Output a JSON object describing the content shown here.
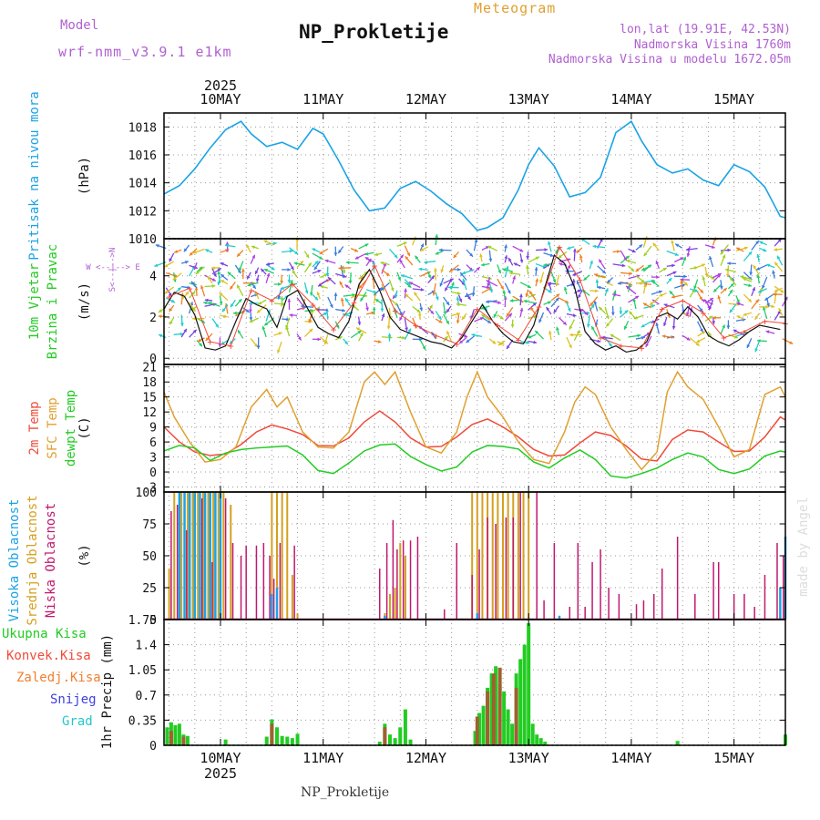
{
  "header": {
    "model_label": "Model",
    "model_name": "wrf-nmm_v3.9.1 e1km",
    "subtitle": "Meteogram",
    "title": "NP_Prokletije",
    "lonlat": "lon,lat (19.91E, 42.53N)",
    "elevation": "Nadmorska Visina 1760m",
    "model_elevation": "Nadmorska Visina u modelu 1672.05m",
    "footer_title": "NP_Prokletije",
    "watermark": "made by Angel"
  },
  "colors": {
    "pressure": "#1aa3e6",
    "temp2m": "#f04a3a",
    "sfc_temp": "#e0a030",
    "dewpoint": "#22cc22",
    "high_cloud": "#1aa3e6",
    "mid_cloud": "#d4a020",
    "low_cloud": "#c0186e",
    "total_precip": "#22cc22",
    "conv_precip": "#a06030",
    "snow": "#4040e0",
    "grad": "#22c8c8",
    "wind_label": "#22cc22",
    "wind_speed": "#111111",
    "gust": "#f04a3a",
    "purple": "#b060d0"
  },
  "time_axis": {
    "year": "2025",
    "day_labels": [
      "10MAY",
      "11MAY",
      "12MAY",
      "13MAY",
      "14MAY",
      "15MAY"
    ],
    "start_day_offset": -0.55,
    "end_day_offset": 5.5
  },
  "chart_data": [
    {
      "id": "pressure",
      "type": "line",
      "ylabel_side": "Pritisak na nivou mora",
      "unit": "(hPa)",
      "ylim": [
        1010,
        1019
      ],
      "yticks": [
        "1010",
        "1012",
        "1014",
        "1016",
        "1018"
      ],
      "series": [
        {
          "x": [
            -0.55,
            -0.4,
            -0.25,
            -0.1,
            0.05,
            0.2,
            0.3,
            0.45,
            0.6,
            0.75,
            0.9,
            1.0,
            1.15,
            1.3,
            1.45,
            1.6,
            1.75,
            1.9,
            2.05,
            2.2,
            2.35,
            2.5,
            2.6,
            2.75,
            2.9,
            3.0,
            3.1,
            3.25,
            3.4,
            3.55,
            3.7,
            3.85,
            4.0,
            4.1,
            4.25,
            4.4,
            4.55,
            4.7,
            4.85,
            5.0,
            5.15,
            5.3,
            5.45,
            5.5
          ],
          "y": [
            1013.2,
            1013.8,
            1015.0,
            1016.5,
            1017.8,
            1018.4,
            1017.5,
            1016.6,
            1016.9,
            1016.4,
            1017.9,
            1017.5,
            1015.6,
            1013.5,
            1012.0,
            1012.2,
            1013.6,
            1014.1,
            1013.4,
            1012.5,
            1011.8,
            1010.6,
            1010.8,
            1011.5,
            1013.5,
            1015.3,
            1016.5,
            1015.2,
            1013.0,
            1013.3,
            1014.4,
            1017.6,
            1018.4,
            1017.0,
            1015.3,
            1014.7,
            1015.0,
            1014.2,
            1013.8,
            1015.3,
            1014.8,
            1013.7,
            1011.6,
            1011.5
          ]
        }
      ]
    },
    {
      "id": "wind",
      "type": "line",
      "ylabel_side": [
        "10m Vjetar",
        "Brzina i Pravac"
      ],
      "unit": "(m/s)",
      "compass": "W <--|--> E",
      "compass_vert": "S<--|-->N",
      "ylim": [
        -0.3,
        5.8
      ],
      "yticks": [
        "0",
        "2",
        "4"
      ],
      "series": [
        {
          "name": "speed",
          "x": [
            -0.55,
            -0.45,
            -0.35,
            -0.25,
            -0.15,
            -0.05,
            0.05,
            0.15,
            0.25,
            0.35,
            0.45,
            0.55,
            0.65,
            0.75,
            0.85,
            0.95,
            1.05,
            1.15,
            1.25,
            1.35,
            1.45,
            1.55,
            1.65,
            1.75,
            1.85,
            1.95,
            2.05,
            2.15,
            2.25,
            2.35,
            2.45,
            2.55,
            2.65,
            2.75,
            2.85,
            2.95,
            3.05,
            3.15,
            3.25,
            3.35,
            3.45,
            3.55,
            3.65,
            3.75,
            3.85,
            3.95,
            4.05,
            4.15,
            4.25,
            4.35,
            4.45,
            4.55,
            4.65,
            4.75,
            4.85,
            4.95,
            5.05,
            5.15,
            5.25,
            5.35,
            5.45
          ],
          "y": [
            2.4,
            3.2,
            3.0,
            2.1,
            0.5,
            0.4,
            0.6,
            1.8,
            2.9,
            2.6,
            2.4,
            1.5,
            3.0,
            3.3,
            2.4,
            1.5,
            1.2,
            1.0,
            1.8,
            3.6,
            4.3,
            3.3,
            2.0,
            1.4,
            1.2,
            1.0,
            0.8,
            0.7,
            0.5,
            1.0,
            1.8,
            2.6,
            1.8,
            1.2,
            0.8,
            0.7,
            1.6,
            3.3,
            5.0,
            4.6,
            3.4,
            1.3,
            0.7,
            0.4,
            0.6,
            0.3,
            0.4,
            0.8,
            2.0,
            2.2,
            1.9,
            2.5,
            2.0,
            1.1,
            0.8,
            0.6,
            0.9,
            1.3,
            1.6,
            1.5,
            1.4
          ]
        },
        {
          "name": "gust",
          "x": [
            -0.5,
            -0.3,
            -0.1,
            0.1,
            0.3,
            0.5,
            0.7,
            0.9,
            1.1,
            1.3,
            1.5,
            1.7,
            1.9,
            2.1,
            2.3,
            2.5,
            2.7,
            2.9,
            3.1,
            3.3,
            3.5,
            3.7,
            3.9,
            4.1,
            4.3,
            4.5,
            4.7,
            4.9,
            5.1,
            5.3,
            5.5
          ],
          "y": [
            3.0,
            3.4,
            0.8,
            0.6,
            3.3,
            2.8,
            3.6,
            2.6,
            1.4,
            2.7,
            4.5,
            2.3,
            1.6,
            1.1,
            0.7,
            2.4,
            1.6,
            0.9,
            2.5,
            5.4,
            3.8,
            1.0,
            0.6,
            0.5,
            2.4,
            2.8,
            2.2,
            1.0,
            1.3,
            1.8,
            1.7
          ]
        }
      ]
    },
    {
      "id": "temperature",
      "type": "line",
      "ylabel_side": [
        "2m Temp",
        "SFC Temp",
        "dewpt Temp"
      ],
      "unit": "(C)",
      "ylim": [
        -4,
        21.5
      ],
      "yticks": [
        "-3",
        "0",
        "3",
        "6",
        "9",
        "12",
        "15",
        "18",
        "21"
      ],
      "series": [
        {
          "name": "2m Temp",
          "x": [
            -0.55,
            -0.4,
            -0.25,
            -0.1,
            0.05,
            0.2,
            0.35,
            0.5,
            0.65,
            0.8,
            0.95,
            1.1,
            1.25,
            1.4,
            1.55,
            1.7,
            1.85,
            2.0,
            2.15,
            2.3,
            2.45,
            2.6,
            2.75,
            2.9,
            3.05,
            3.2,
            3.35,
            3.5,
            3.65,
            3.8,
            3.95,
            4.1,
            4.25,
            4.4,
            4.55,
            4.7,
            4.85,
            5.0,
            5.15,
            5.3,
            5.45,
            5.5
          ],
          "y": [
            9,
            6,
            4,
            3.3,
            3.6,
            5.5,
            8,
            9.4,
            8.6,
            7.5,
            5.3,
            5.2,
            6.8,
            10,
            12.2,
            10,
            6.8,
            5.0,
            5.1,
            7,
            9.5,
            10.6,
            9,
            7,
            4.5,
            3.2,
            3.4,
            5.8,
            8,
            7.3,
            5.2,
            2.6,
            2.2,
            6.5,
            8.4,
            8,
            6,
            4.1,
            4.2,
            7,
            11,
            10.4
          ]
        },
        {
          "name": "SFC Temp",
          "x": [
            -0.55,
            -0.45,
            -0.3,
            -0.15,
            0.0,
            0.15,
            0.3,
            0.45,
            0.55,
            0.65,
            0.8,
            0.95,
            1.1,
            1.25,
            1.4,
            1.5,
            1.6,
            1.7,
            1.85,
            2.0,
            2.15,
            2.3,
            2.4,
            2.5,
            2.6,
            2.75,
            2.9,
            3.05,
            3.2,
            3.35,
            3.45,
            3.55,
            3.65,
            3.8,
            3.95,
            4.1,
            4.25,
            4.35,
            4.45,
            4.55,
            4.7,
            4.85,
            5.0,
            5.15,
            5.3,
            5.45,
            5.5
          ],
          "y": [
            16,
            11,
            6,
            2,
            2.5,
            5,
            13,
            16.5,
            13,
            15,
            8,
            5,
            4.8,
            8,
            18,
            20,
            17.5,
            20,
            12,
            5,
            3.8,
            8,
            15,
            20,
            15,
            11,
            6,
            2.5,
            1.7,
            8,
            14,
            17,
            15.5,
            9,
            4.5,
            0.5,
            4,
            16,
            20,
            17,
            14.5,
            9,
            3,
            4.5,
            15.5,
            17,
            15
          ]
        },
        {
          "name": "dewpt Temp",
          "x": [
            -0.55,
            -0.4,
            -0.25,
            -0.1,
            0.05,
            0.2,
            0.35,
            0.5,
            0.65,
            0.8,
            0.95,
            1.1,
            1.25,
            1.4,
            1.55,
            1.7,
            1.85,
            2.0,
            2.15,
            2.3,
            2.45,
            2.6,
            2.75,
            2.9,
            3.05,
            3.2,
            3.35,
            3.5,
            3.65,
            3.8,
            3.95,
            4.1,
            4.25,
            4.4,
            4.55,
            4.7,
            4.85,
            5.0,
            5.15,
            5.3,
            5.45,
            5.5
          ],
          "y": [
            4.2,
            5.3,
            4.8,
            2.3,
            3.8,
            4.5,
            4.8,
            5.0,
            5.2,
            3.4,
            0.3,
            -0.3,
            1.8,
            4.2,
            5.4,
            5.6,
            3.1,
            1.5,
            0.2,
            1.0,
            4.0,
            5.3,
            5.1,
            4.6,
            2.0,
            0.8,
            2.8,
            4.4,
            2.5,
            -0.8,
            -1.2,
            -0.3,
            0.8,
            2.5,
            3.8,
            3.0,
            0.5,
            -0.3,
            0.6,
            3.2,
            4.2,
            4.0
          ]
        }
      ]
    },
    {
      "id": "clouds",
      "type": "bar",
      "ylabel_side": [
        "Visoka Oblacnost",
        "Srednja Oblacnost",
        "Niska Oblacnost"
      ],
      "unit": "(%)",
      "ylim": [
        0,
        100
      ],
      "yticks": [
        "0",
        "25",
        "50",
        "75",
        "100"
      ],
      "series": [
        {
          "name": "Visoka Oblacnost",
          "x": [
            -0.4,
            -0.35,
            -0.3,
            -0.25,
            -0.2,
            -0.15,
            -0.1,
            -0.05,
            0.0,
            0.5,
            0.55,
            1.6,
            2.5,
            3.3,
            5.45,
            5.5
          ],
          "y": [
            100,
            100,
            100,
            100,
            100,
            100,
            100,
            100,
            100,
            20,
            25,
            3,
            5,
            3,
            25,
            65
          ]
        },
        {
          "name": "Srednja Oblacnost",
          "x": [
            -0.5,
            -0.45,
            -0.38,
            -0.32,
            -0.27,
            -0.22,
            -0.17,
            -0.12,
            -0.07,
            -0.02,
            0.03,
            0.1,
            0.5,
            0.55,
            0.6,
            0.65,
            0.7,
            0.75,
            1.6,
            1.65,
            1.7,
            1.75,
            1.8,
            2.45,
            2.5,
            2.55,
            2.6,
            2.65,
            2.7,
            2.75,
            2.8,
            2.85,
            2.9,
            2.95,
            3.0
          ],
          "y": [
            40,
            100,
            100,
            100,
            100,
            100,
            100,
            100,
            100,
            100,
            100,
            90,
            100,
            100,
            100,
            100,
            35,
            5,
            5,
            20,
            25,
            60,
            50,
            100,
            100,
            100,
            100,
            100,
            100,
            100,
            100,
            100,
            100,
            100,
            100
          ]
        },
        {
          "name": "Niska Oblacnost",
          "x": [
            -0.48,
            -0.42,
            -0.33,
            -0.18,
            -0.08,
            0.05,
            0.12,
            0.2,
            0.25,
            0.35,
            0.42,
            0.48,
            0.52,
            0.58,
            0.72,
            1.55,
            1.62,
            1.68,
            1.72,
            1.78,
            1.85,
            1.92,
            2.18,
            2.3,
            2.45,
            2.52,
            2.6,
            2.68,
            2.78,
            2.85,
            2.92,
            3.08,
            3.15,
            3.25,
            3.4,
            3.48,
            3.55,
            3.62,
            3.7,
            3.78,
            3.88,
            4.05,
            4.12,
            4.22,
            4.3,
            4.45,
            4.62,
            4.8,
            4.85,
            5.0,
            5.1,
            5.2,
            5.3,
            5.42,
            5.48
          ],
          "y": [
            85,
            90,
            70,
            95,
            45,
            95,
            60,
            50,
            58,
            58,
            60,
            50,
            32,
            60,
            58,
            40,
            60,
            78,
            55,
            62,
            62,
            65,
            8,
            60,
            35,
            55,
            80,
            75,
            80,
            80,
            100,
            100,
            15,
            60,
            10,
            60,
            10,
            45,
            55,
            25,
            20,
            12,
            15,
            20,
            40,
            65,
            20,
            45,
            45,
            20,
            20,
            10,
            35,
            60,
            50
          ]
        }
      ]
    },
    {
      "id": "precip",
      "type": "bar",
      "ylabel_side": "1hr Precip (mm)",
      "legend": [
        "Ukupna Kisa",
        "Konvek.Kisa",
        "Zaledj.Kisa",
        "Snijeg",
        "Grad"
      ],
      "ylim": [
        0,
        1.75
      ],
      "yticks": [
        "0",
        "0.35",
        "0.7",
        "1.05",
        "1.4",
        "1.75"
      ],
      "series": [
        {
          "name": "Ukupna Kisa",
          "x": [
            -0.52,
            -0.48,
            -0.44,
            -0.4,
            -0.36,
            -0.32,
            0.05,
            0.45,
            0.5,
            0.55,
            0.6,
            0.65,
            0.7,
            0.75,
            1.55,
            1.6,
            1.65,
            1.7,
            1.75,
            1.8,
            1.85,
            2.48,
            2.52,
            2.56,
            2.6,
            2.64,
            2.68,
            2.72,
            2.76,
            2.8,
            2.84,
            2.88,
            2.92,
            2.96,
            3.0,
            3.04,
            3.08,
            3.12,
            3.16,
            4.45,
            5.5
          ],
          "y": [
            0.25,
            0.32,
            0.28,
            0.3,
            0.15,
            0.13,
            0.08,
            0.12,
            0.36,
            0.25,
            0.13,
            0.12,
            0.1,
            0.16,
            0.05,
            0.3,
            0.15,
            0.1,
            0.25,
            0.5,
            0.08,
            0.2,
            0.45,
            0.55,
            0.8,
            1.0,
            1.1,
            0.85,
            0.75,
            0.5,
            0.3,
            1.0,
            1.2,
            1.4,
            1.7,
            0.3,
            0.15,
            0.1,
            0.05,
            0.06,
            0.15
          ]
        },
        {
          "name": "Konvek.Kisa",
          "x": [
            -0.48,
            -0.36,
            0.5,
            1.6,
            2.5,
            2.6,
            2.66,
            2.72,
            2.88
          ],
          "y": [
            0.2,
            0.12,
            0.3,
            0.25,
            0.4,
            0.75,
            1.0,
            1.08,
            0.8
          ]
        }
      ]
    }
  ]
}
